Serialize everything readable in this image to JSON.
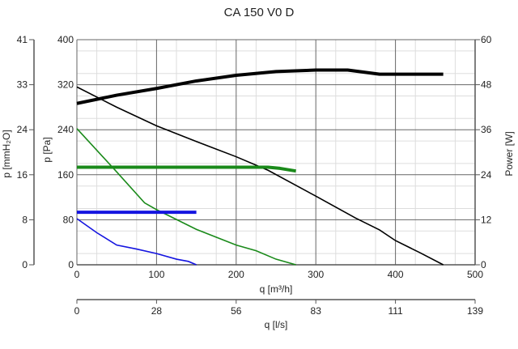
{
  "chart_data": {
    "type": "line",
    "title": "CA 150 V0 D",
    "xlabel": "q [m³/h]",
    "x2label": "q [l/s]",
    "ylabel": "p [Pa]",
    "y2label": "p [mmH₂O]",
    "y3label": "Power [W]",
    "xlim": [
      0,
      500
    ],
    "ylim": [
      0,
      400
    ],
    "power_lim": [
      0,
      60
    ],
    "x_ticks": [
      "0",
      "100",
      "200",
      "300",
      "400",
      "500"
    ],
    "x2_ticks": [
      "0",
      "28",
      "56",
      "83",
      "111",
      "139"
    ],
    "y_ticks": [
      "0",
      "80",
      "160",
      "240",
      "320",
      "400"
    ],
    "y2_ticks": [
      "0",
      "8",
      "16",
      "24",
      "33",
      "41"
    ],
    "power_ticks": [
      "0",
      "12",
      "24",
      "36",
      "48",
      "60"
    ],
    "grid": true,
    "pressure_series": [
      {
        "color": "#000000",
        "points": [
          [
            0,
            316
          ],
          [
            50,
            280
          ],
          [
            100,
            247
          ],
          [
            150,
            219
          ],
          [
            200,
            192
          ],
          [
            240,
            168
          ],
          [
            300,
            122
          ],
          [
            350,
            83
          ],
          [
            380,
            62
          ],
          [
            400,
            43
          ],
          [
            430,
            22
          ],
          [
            460,
            0
          ]
        ]
      },
      {
        "color": "#1a8a1a",
        "points": [
          [
            0,
            242
          ],
          [
            50,
            165
          ],
          [
            85,
            110
          ],
          [
            100,
            98
          ],
          [
            150,
            63
          ],
          [
            200,
            35
          ],
          [
            225,
            25
          ],
          [
            250,
            10
          ],
          [
            275,
            0
          ]
        ]
      },
      {
        "color": "#1414e0",
        "points": [
          [
            0,
            82
          ],
          [
            25,
            57
          ],
          [
            50,
            35
          ],
          [
            75,
            28
          ],
          [
            100,
            20
          ],
          [
            125,
            10
          ],
          [
            140,
            6
          ],
          [
            150,
            0
          ]
        ]
      }
    ],
    "power_series": [
      {
        "color": "#000000",
        "points": [
          [
            0,
            43
          ],
          [
            50,
            45.2
          ],
          [
            100,
            47
          ],
          [
            150,
            49
          ],
          [
            200,
            50.5
          ],
          [
            250,
            51.5
          ],
          [
            300,
            51.9
          ],
          [
            340,
            51.9
          ],
          [
            380,
            50.8
          ],
          [
            460,
            50.8
          ]
        ]
      },
      {
        "color": "#1a8a1a",
        "points": [
          [
            0,
            26
          ],
          [
            240,
            26
          ],
          [
            255,
            25.7
          ],
          [
            275,
            25
          ]
        ]
      },
      {
        "color": "#1414e0",
        "points": [
          [
            0,
            14
          ],
          [
            150,
            14
          ]
        ]
      }
    ]
  }
}
